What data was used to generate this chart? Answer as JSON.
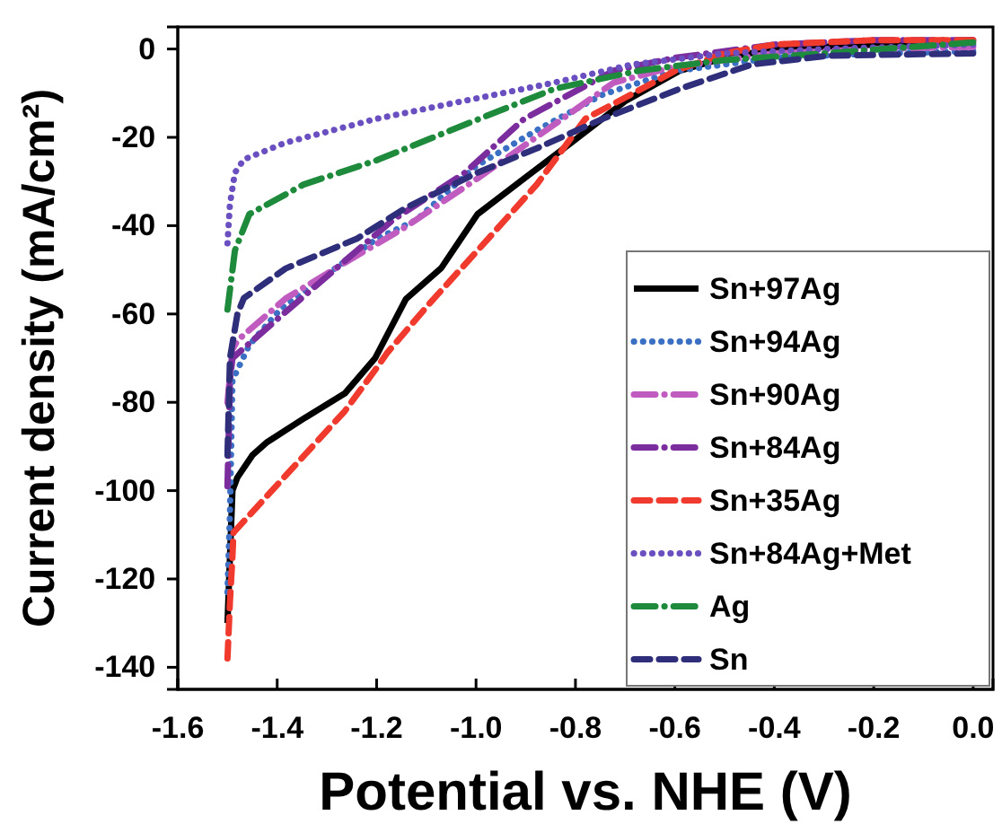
{
  "chart_data": {
    "type": "line",
    "xlabel": "Potential vs. NHE (V)",
    "ylabel": "Current density (mA/cm²)",
    "xlim": [
      -1.6,
      0.04
    ],
    "ylim": [
      -145,
      5
    ],
    "xticks": [
      -1.6,
      -1.4,
      -1.2,
      {
        "value": -1.0,
        "label": "-1.0"
      },
      -0.8,
      -0.6,
      -0.4,
      -0.2,
      {
        "value": 0,
        "label": "0.0"
      }
    ],
    "yticks": [
      0,
      -20,
      -40,
      -60,
      -80,
      -100,
      -120,
      -140
    ],
    "grid": false,
    "legend": "bottom right",
    "marker": "none",
    "series": [
      {
        "name": "Sn+97Ag",
        "color": "#000000",
        "line_style": "solid",
        "x": [
          -1.5,
          -1.495,
          -1.49,
          -1.48,
          -1.45,
          -1.42,
          -1.344,
          -1.264,
          -1.203,
          -1.141,
          -1.07,
          -0.997,
          -0.903,
          -0.806,
          -0.7,
          -0.59,
          -0.5,
          -0.4,
          -0.2,
          0
        ],
        "values": [
          -130,
          -115,
          -100,
          -97,
          -92,
          -89,
          -83.5,
          -78,
          -70,
          -56.6,
          -49.6,
          -37.4,
          -29.3,
          -21,
          -11.8,
          -4.9,
          -2,
          0,
          1,
          2
        ]
      },
      {
        "name": "Sn+94Ag",
        "color": "#3a6fc4",
        "line_style": "dotted",
        "x": [
          -1.5,
          -1.495,
          -1.49,
          -1.456,
          -1.394,
          -1.3,
          -1.2,
          -1.12,
          -1.0,
          -0.878,
          -0.745,
          -0.6,
          -0.4,
          -0.2,
          0
        ],
        "values": [
          -123,
          -105,
          -75,
          -67,
          -59,
          -51,
          -43,
          -38.7,
          -26.5,
          -18.4,
          -10.3,
          -5,
          -2,
          -1,
          -0.5
        ]
      },
      {
        "name": "Sn+90Ag",
        "color": "#c05cc0",
        "line_style": "dashdot",
        "x": [
          -1.5,
          -1.49,
          -1.48,
          -1.383,
          -1.264,
          -1.142,
          -0.997,
          -0.878,
          -0.723,
          -0.6,
          -0.4,
          -0.2,
          0
        ],
        "values": [
          -80,
          -68,
          -66,
          -56.5,
          -48.4,
          -40.3,
          -29.3,
          -19.9,
          -7.6,
          -4,
          -1,
          0,
          0.5
        ]
      },
      {
        "name": "Sn+84Ag",
        "color": "#7b2d9e",
        "line_style": "dashdot",
        "x": [
          -1.5,
          -1.495,
          -1.49,
          -1.394,
          -1.264,
          -1.167,
          -1.022,
          -0.903,
          -0.723,
          -0.6,
          -0.4,
          -0.2,
          0
        ],
        "values": [
          -99,
          -75,
          -70,
          -60.6,
          -48,
          -38.7,
          -28,
          -15.8,
          -4.9,
          -2,
          1,
          2,
          2
        ]
      },
      {
        "name": "Sn+35Ag",
        "color": "#f03a2e",
        "line_style": "dashed",
        "x": [
          -1.5,
          -1.495,
          -1.49,
          -1.488,
          -1.264,
          -1.203,
          -1.178,
          -1.095,
          -0.975,
          -0.878,
          -0.78,
          -0.7,
          -0.6,
          -0.5,
          -0.4,
          -0.2,
          0
        ],
        "values": [
          -138,
          -125,
          -115,
          -109.5,
          -82,
          -72.7,
          -68.7,
          -57.8,
          -42.9,
          -30.7,
          -15.8,
          -11,
          -5,
          -1,
          1,
          2,
          2
        ]
      },
      {
        "name": "Sn+84Ag+Met",
        "color": "#6a4fc0",
        "line_style": "dotted",
        "x": [
          -1.5,
          -1.495,
          -1.485,
          -1.467,
          -1.383,
          -1.2,
          -1.022,
          -0.842,
          -0.686,
          -0.5,
          -0.3,
          0
        ],
        "values": [
          -44,
          -35,
          -28,
          -25,
          -21.2,
          -15.8,
          -11.7,
          -7.6,
          -3.5,
          -1,
          0,
          1
        ]
      },
      {
        "name": "Ag",
        "color": "#1e8a3c",
        "line_style": "dashdot",
        "x": [
          -1.5,
          -1.485,
          -1.456,
          -1.347,
          -1.2,
          -1.022,
          -0.842,
          -0.672,
          -0.5,
          -0.3,
          0
        ],
        "values": [
          -59,
          -45.6,
          -37.4,
          -30.7,
          -25.2,
          -17.1,
          -9,
          -4.9,
          -2.5,
          -1,
          1.5
        ]
      },
      {
        "name": "Sn",
        "color": "#2e2e7a",
        "line_style": "dashed",
        "x": [
          -1.5,
          -1.495,
          -1.48,
          -1.467,
          -1.383,
          -1.239,
          -1.142,
          -0.997,
          -0.878,
          -0.745,
          -0.59,
          -0.445,
          -0.29,
          0
        ],
        "values": [
          -92,
          -70,
          -60,
          -56.4,
          -49.7,
          -42.9,
          -36,
          -28,
          -22.5,
          -15.8,
          -9,
          -3.5,
          -1.5,
          -1
        ]
      }
    ]
  }
}
